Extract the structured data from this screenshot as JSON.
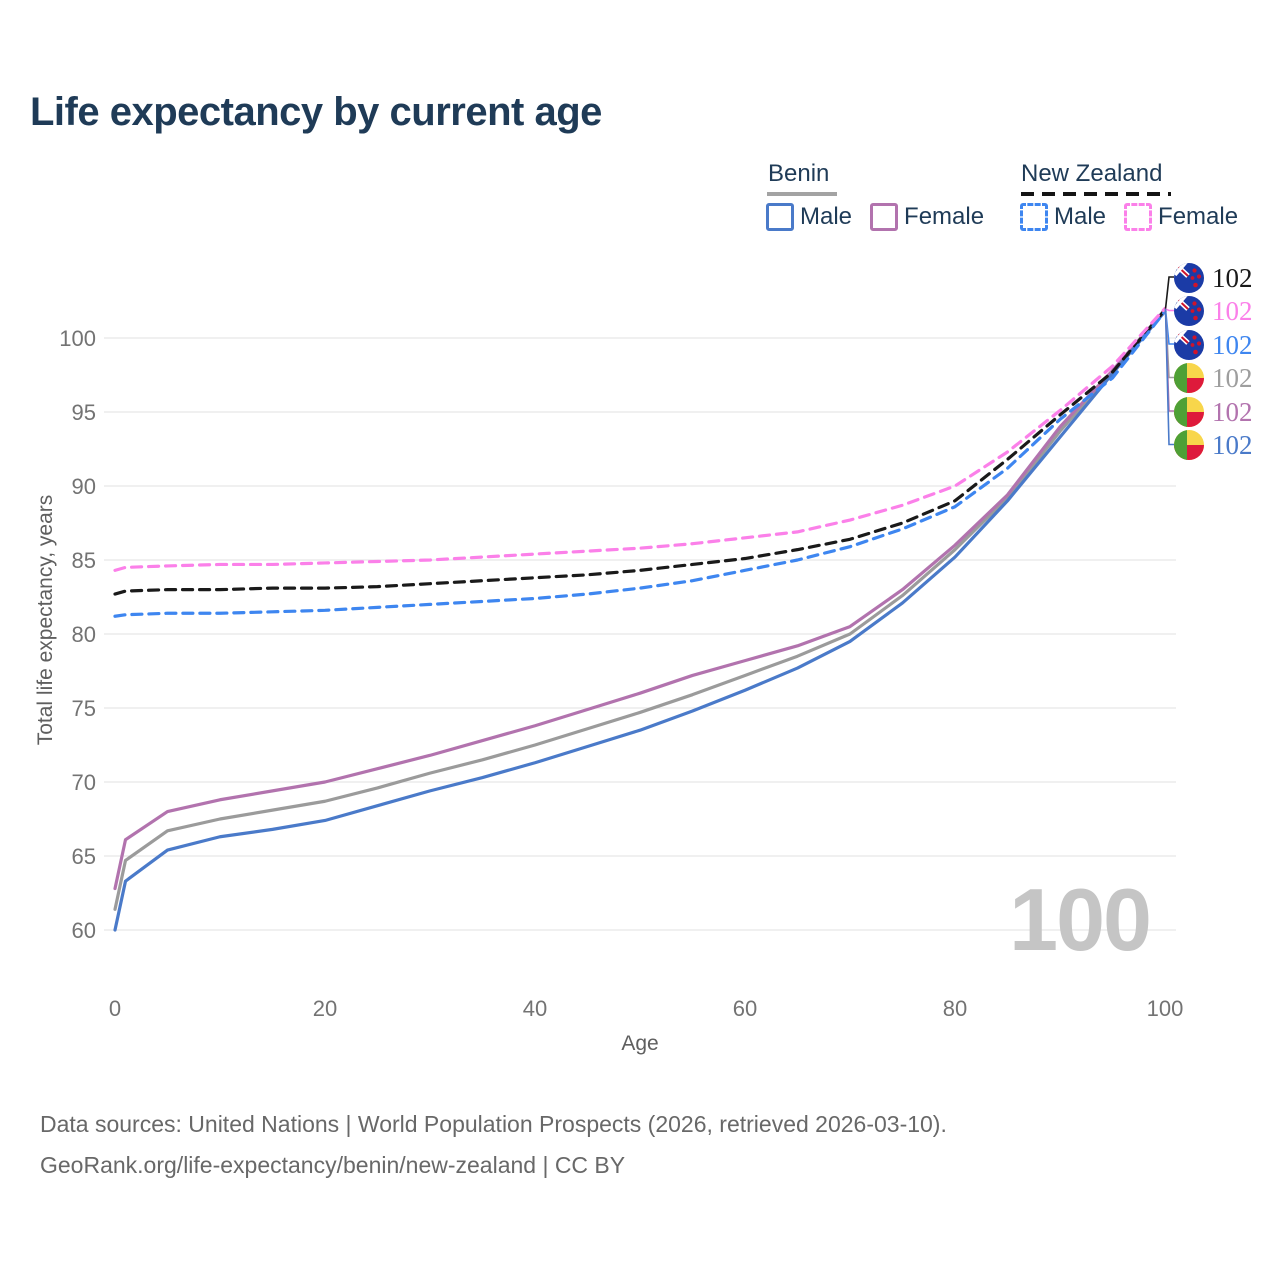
{
  "title": "Life expectancy by current age",
  "legend": {
    "groups": [
      {
        "label": "Benin",
        "line_style": "solid",
        "swatch_color": "#a3a3a3",
        "items": [
          {
            "label": "Male",
            "color": "#4a7ac9"
          },
          {
            "label": "Female",
            "color": "#b273ae"
          }
        ]
      },
      {
        "label": "New Zealand",
        "line_style": "dashed",
        "swatch_color": "#141414",
        "items": [
          {
            "label": "Male",
            "color": "#3e86f0"
          },
          {
            "label": "Female",
            "color": "#fb80e9"
          }
        ]
      }
    ]
  },
  "chart_data": {
    "type": "line",
    "title": "Life expectancy by current age",
    "xlabel": "Age",
    "ylabel": "Total life expectancy, years",
    "x_ticks": [
      0,
      20,
      40,
      60,
      80,
      100
    ],
    "y_ticks": [
      60,
      65,
      70,
      75,
      80,
      85,
      90,
      95,
      100
    ],
    "xlim": [
      0,
      100
    ],
    "ylim": [
      58.5,
      103
    ],
    "grid": "horizontal-only",
    "legend_position": "top-right",
    "x": [
      0,
      1,
      5,
      10,
      15,
      20,
      25,
      30,
      35,
      40,
      45,
      50,
      55,
      60,
      65,
      70,
      75,
      80,
      85,
      90,
      95,
      100
    ],
    "series": [
      {
        "id": "benin-average",
        "country": "Benin",
        "group": "Average",
        "style": "solid",
        "color": "#9b9b9b",
        "end_value": 102,
        "values": [
          61.4,
          64.7,
          66.7,
          67.5,
          68.1,
          68.7,
          69.6,
          70.6,
          71.5,
          72.5,
          73.6,
          74.7,
          75.9,
          77.2,
          78.5,
          80.0,
          82.6,
          85.7,
          89.2,
          93.7,
          97.7,
          101.9
        ]
      },
      {
        "id": "benin-female",
        "country": "Benin",
        "group": "Female",
        "style": "solid",
        "color": "#b273ae",
        "end_value": 102,
        "values": [
          62.8,
          66.1,
          68.0,
          68.8,
          69.4,
          70.0,
          70.9,
          71.8,
          72.8,
          73.8,
          74.9,
          76.0,
          77.2,
          78.2,
          79.2,
          80.5,
          83.0,
          86.0,
          89.4,
          94.0,
          97.8,
          101.9
        ]
      },
      {
        "id": "benin-male",
        "country": "Benin",
        "group": "Male",
        "style": "solid",
        "color": "#4a7ac9",
        "end_value": 102,
        "values": [
          60.0,
          63.3,
          65.4,
          66.3,
          66.8,
          67.4,
          68.4,
          69.4,
          70.3,
          71.3,
          72.4,
          73.5,
          74.8,
          76.2,
          77.7,
          79.5,
          82.1,
          85.2,
          89.0,
          93.3,
          97.6,
          101.8
        ]
      },
      {
        "id": "new-zealand-average",
        "country": "New Zealand",
        "group": "Average",
        "style": "dashed",
        "color": "#1a1a1a",
        "end_value": 102,
        "values": [
          82.7,
          82.9,
          83.0,
          83.0,
          83.1,
          83.1,
          83.2,
          83.4,
          83.6,
          83.8,
          84.0,
          84.3,
          84.7,
          85.1,
          85.7,
          86.4,
          87.5,
          89.0,
          91.8,
          94.8,
          97.7,
          101.9
        ]
      },
      {
        "id": "new-zealand-male",
        "country": "New Zealand",
        "group": "Male",
        "style": "dashed",
        "color": "#3e86f0",
        "end_value": 102,
        "values": [
          81.2,
          81.3,
          81.4,
          81.4,
          81.5,
          81.6,
          81.8,
          82.0,
          82.2,
          82.4,
          82.7,
          83.1,
          83.6,
          84.3,
          85.0,
          85.9,
          87.1,
          88.6,
          91.2,
          94.5,
          97.3,
          101.8
        ]
      },
      {
        "id": "new-zealand-female",
        "country": "New Zealand",
        "group": "Female",
        "style": "dashed",
        "color": "#fb80e9",
        "end_value": 102,
        "values": [
          84.3,
          84.5,
          84.6,
          84.7,
          84.7,
          84.8,
          84.9,
          85.0,
          85.2,
          85.4,
          85.6,
          85.8,
          86.1,
          86.5,
          86.9,
          87.7,
          88.7,
          90.0,
          92.3,
          95.1,
          98.1,
          102.0
        ]
      }
    ]
  },
  "end_labels": [
    {
      "flag": "new-zealand",
      "value": "102",
      "color": "#1a1a1a",
      "series": "new-zealand-average"
    },
    {
      "flag": "new-zealand",
      "value": "102",
      "color": "#fb80e9",
      "series": "new-zealand-female"
    },
    {
      "flag": "new-zealand",
      "value": "102",
      "color": "#3e86f0",
      "series": "new-zealand-male"
    },
    {
      "flag": "benin",
      "value": "102",
      "color": "#9e9e9e",
      "series": "benin-average"
    },
    {
      "flag": "benin",
      "value": "102",
      "color": "#b273ae",
      "series": "benin-female"
    },
    {
      "flag": "benin",
      "value": "102",
      "color": "#4a7ac9",
      "series": "benin-male"
    }
  ],
  "watermark": "100",
  "footer": {
    "line1": "Data sources: United Nations | World Population Prospects (2026, retrieved 2026-03-10).",
    "line2": "GeoRank.org/life-expectancy/benin/new-zealand | CC BY"
  },
  "colors": {
    "title": "#1f3b57",
    "legend_text": "#1f3b57",
    "grid": "#e6e6e6",
    "tick_label": "#737373",
    "axis_title": "#5f5f5f",
    "watermark": "#c5c5c5",
    "footer": "#686868",
    "nz_flag_blue": "#1b3ba6",
    "nz_flag_red": "#cf142b",
    "benin_green": "#4ea036",
    "benin_yellow": "#f8d64b",
    "benin_red": "#de1a3b"
  }
}
